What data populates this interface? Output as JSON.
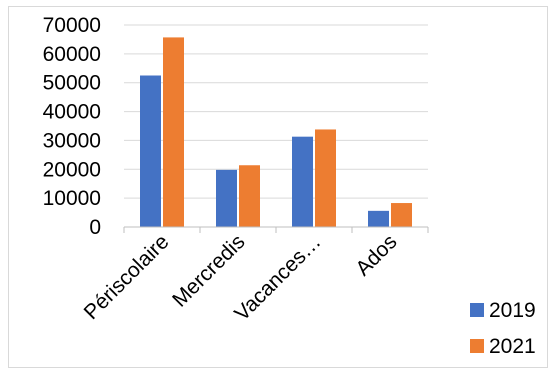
{
  "chart_data": {
    "type": "bar",
    "categories": [
      "Périscolaire",
      "Mercredis",
      "Vacances…",
      "Ados"
    ],
    "series": [
      {
        "name": "2019",
        "values": [
          52500,
          19800,
          31300,
          5600
        ],
        "color": "#4472c4"
      },
      {
        "name": "2021",
        "values": [
          65700,
          21400,
          33800,
          8300
        ],
        "color": "#ed7d31"
      }
    ],
    "yticks": [
      0,
      10000,
      20000,
      30000,
      40000,
      50000,
      60000,
      70000
    ],
    "ylim": [
      0,
      70000
    ],
    "grid": true,
    "legend_position": "bottom-right",
    "title": "",
    "xlabel": "",
    "ylabel": ""
  }
}
